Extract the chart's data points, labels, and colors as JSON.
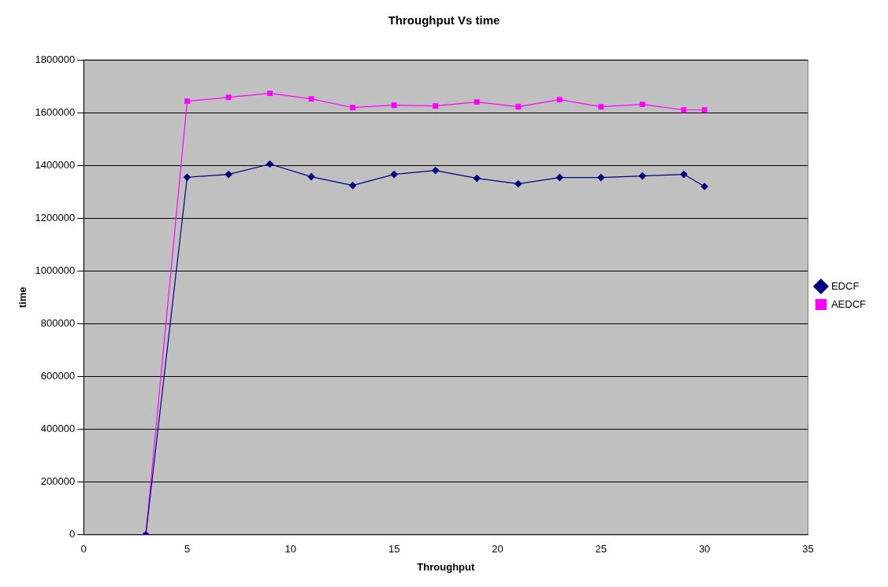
{
  "chart_data": {
    "type": "line",
    "title": "Throughput Vs time",
    "xlabel": "Throughput",
    "ylabel": "time",
    "x": [
      3,
      5,
      7,
      9,
      11,
      13,
      15,
      17,
      19,
      21,
      23,
      25,
      27,
      29,
      30
    ],
    "series": [
      {
        "name": "EDCF",
        "color": "#000080",
        "marker": "diamond",
        "values": [
          0,
          1355000,
          1366000,
          1405000,
          1357000,
          1324000,
          1366000,
          1381000,
          1351000,
          1330000,
          1354000,
          1354000,
          1360000,
          1366000,
          1320000
        ]
      },
      {
        "name": "AEDCF",
        "color": "#ff00ff",
        "marker": "square",
        "values": [
          0,
          1643000,
          1658000,
          1673000,
          1652000,
          1619000,
          1628000,
          1625000,
          1640000,
          1622000,
          1649000,
          1622000,
          1631000,
          1610000,
          1610000
        ]
      }
    ],
    "xlim": [
      0,
      35
    ],
    "xticks": [
      0,
      5,
      10,
      15,
      20,
      25,
      30,
      35
    ],
    "ylim": [
      0,
      1800000
    ],
    "yticks": [
      0,
      200000,
      400000,
      600000,
      800000,
      1000000,
      1200000,
      1400000,
      1600000,
      1800000
    ],
    "grid": "y",
    "legend": "right",
    "line_style": "solid"
  }
}
